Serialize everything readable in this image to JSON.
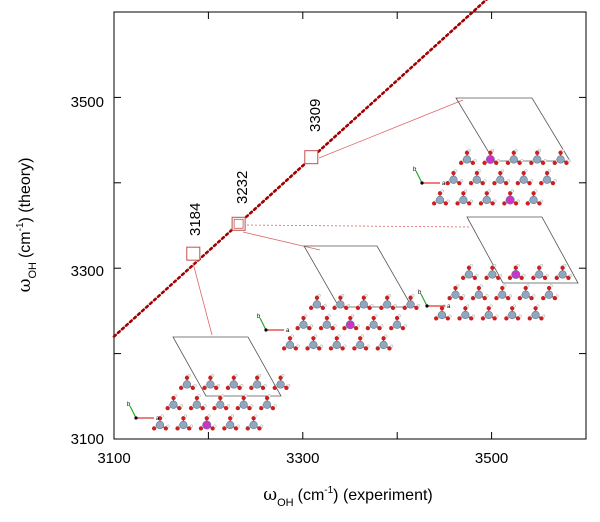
{
  "chart_data": {
    "type": "scatter",
    "title": "",
    "x_range": [
      3100,
      3600
    ],
    "y_range": [
      3100,
      3600
    ],
    "x_ticks": [
      3100,
      3300,
      3500
    ],
    "y_ticks": [
      3100,
      3300,
      3500
    ],
    "x_tick_labels": [
      "3100",
      "3300",
      "3500"
    ],
    "y_tick_labels": [
      "3100",
      "3300",
      "3500"
    ],
    "xlabel": {
      "symbol": "ω",
      "sub": "OH",
      "text": "(cm",
      "sup": "-1",
      "tail": ") (experiment)"
    },
    "ylabel": {
      "symbol": "ω",
      "sub": "OH",
      "text": "(cm",
      "sup": "-1",
      "tail": ") (theory)"
    },
    "diagonal": {
      "style": "dotted",
      "color": "#a40000",
      "from": [
        3100,
        3220
      ],
      "to": [
        3600,
        3720
      ]
    },
    "points": [
      {
        "experiment": 3184,
        "theory": 3317,
        "label": "3184"
      },
      {
        "experiment": 3232,
        "theory": 3352,
        "label": "3232"
      },
      {
        "experiment": 3309,
        "theory": 3430,
        "label": "3309"
      }
    ],
    "structures": [
      {
        "name": "structure-3184",
        "axis_letters": [
          "b",
          "a"
        ]
      },
      {
        "name": "structure-3232-a",
        "axis_letters": [
          "b",
          "a"
        ]
      },
      {
        "name": "structure-3232-b",
        "axis_letters": [
          "b",
          "a"
        ]
      },
      {
        "name": "structure-3309",
        "axis_letters": [
          "b",
          "a"
        ]
      }
    ],
    "colors": {
      "marker": "#c0504d",
      "connector": "#e06666",
      "diagonal": "#a40000",
      "metal": "#8fa8bf",
      "oxygen": "#cc1f1f",
      "hydrogen": "#f4f4f4",
      "dopant": "#cc33cc",
      "cell": "#555555"
    }
  }
}
